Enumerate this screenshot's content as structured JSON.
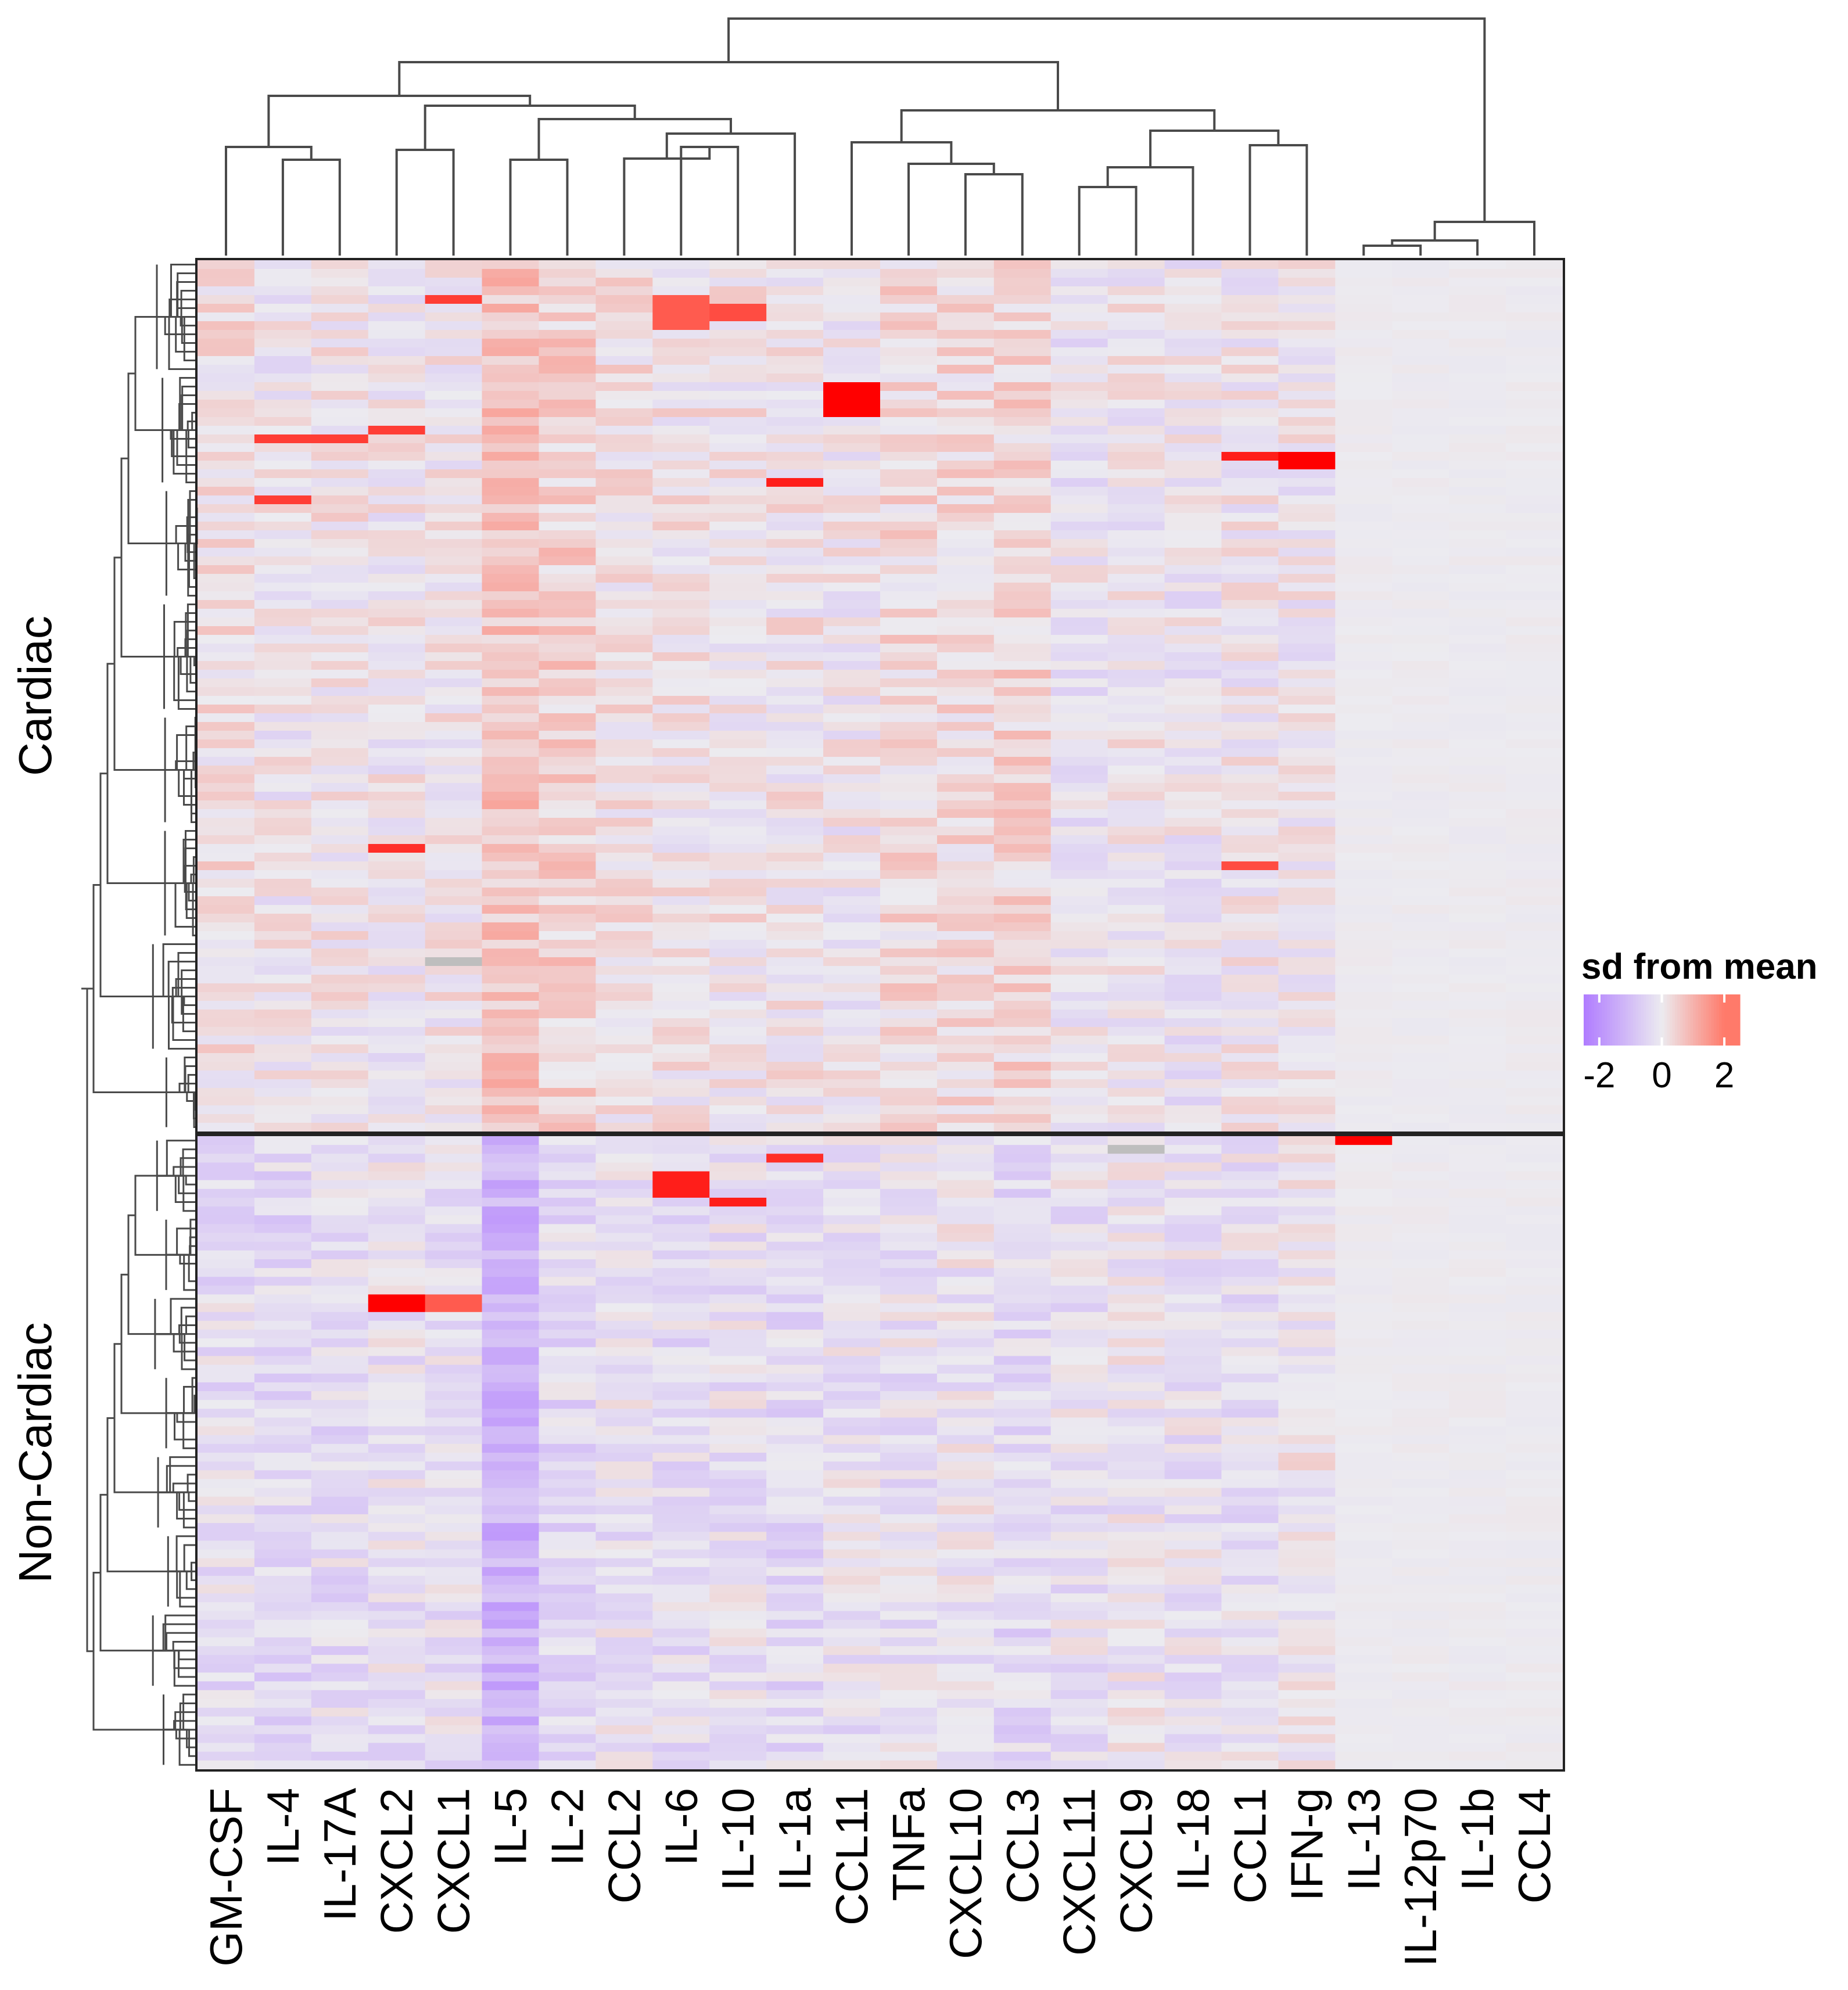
{
  "chart_data": {
    "type": "heatmap",
    "title": "",
    "columns": [
      "GM-CSF",
      "IL-4",
      "IL-17A",
      "CXCL2",
      "CXCL1",
      "IL-5",
      "IL-2",
      "CCL2",
      "IL-6",
      "IL-10",
      "IL-1a",
      "CCL11",
      "TNFa",
      "CXCL10",
      "CCL3",
      "CXCL11",
      "CXCL9",
      "IL-18",
      "CCL1",
      "IFN-g",
      "IL-13",
      "IL-12p70",
      "IL-1b",
      "CCL4"
    ],
    "row_groups": [
      {
        "name": "Cardiac",
        "n_rows": 100
      },
      {
        "name": "Non-Cardiac",
        "n_rows": 72
      }
    ],
    "legend": {
      "title": "sd from mean",
      "ticks": [
        "-2",
        "0",
        "2"
      ],
      "range": [
        -2.5,
        2.5
      ],
      "colors": {
        "low": "#b07cff",
        "mid": "#ecebf0",
        "high": "#ff7a6a",
        "extreme": "#ff0000",
        "missing": "#bebebe"
      }
    },
    "column_means": {
      "Cardiac": [
        0.2,
        0.0,
        0.1,
        0.0,
        0.1,
        0.7,
        0.5,
        0.2,
        0.1,
        0.1,
        0.1,
        0.0,
        0.3,
        0.3,
        0.4,
        -0.1,
        0.0,
        -0.1,
        0.0,
        0.0,
        0.0,
        0.0,
        0.0,
        0.0
      ],
      "Non-Cardiac": [
        -0.3,
        -0.4,
        -0.3,
        -0.2,
        -0.2,
        -1.3,
        -0.4,
        -0.2,
        -0.3,
        -0.2,
        -0.4,
        -0.2,
        -0.2,
        -0.1,
        -0.4,
        -0.2,
        -0.1,
        -0.2,
        -0.2,
        0.0,
        0.0,
        0.0,
        0.0,
        0.0
      ]
    },
    "highlights": [
      {
        "group": "Cardiac",
        "col": "CCL11",
        "rows": [
          14,
          17
        ],
        "value": 3.0
      },
      {
        "group": "Cardiac",
        "col": "IFN-g",
        "rows": [
          22,
          23
        ],
        "value": 2.8
      },
      {
        "group": "Cardiac",
        "col": "CCL1",
        "rows": [
          22,
          22
        ],
        "value": 2.6
      },
      {
        "group": "Cardiac",
        "col": "IL-1a",
        "rows": [
          25,
          25
        ],
        "value": 2.6
      },
      {
        "group": "Cardiac",
        "col": "CXCL2",
        "rows": [
          19,
          19
        ],
        "value": 2.4
      },
      {
        "group": "Cardiac",
        "col": "IL-4",
        "rows": [
          20,
          20
        ],
        "value": 2.4
      },
      {
        "group": "Cardiac",
        "col": "IL-17A",
        "rows": [
          20,
          20
        ],
        "value": 2.4
      },
      {
        "group": "Cardiac",
        "col": "IL-4",
        "rows": [
          27,
          27
        ],
        "value": 2.4
      },
      {
        "group": "Cardiac",
        "col": "CXCL2",
        "rows": [
          67,
          67
        ],
        "value": 2.5
      },
      {
        "group": "Cardiac",
        "col": "CCL1",
        "rows": [
          69,
          69
        ],
        "value": 2.3
      },
      {
        "group": "Cardiac",
        "col": "CXCL1",
        "rows": [
          4,
          4
        ],
        "value": 2.4
      },
      {
        "group": "Cardiac",
        "col": "IL-6",
        "rows": [
          4,
          7
        ],
        "value": 2.2
      },
      {
        "group": "Cardiac",
        "col": "IL-10",
        "rows": [
          5,
          6
        ],
        "value": 2.3
      },
      {
        "group": "Cardiac",
        "col": "CXCL1",
        "rows": [
          80,
          80
        ],
        "value": "NA"
      },
      {
        "group": "Non-Cardiac",
        "col": "IL-6",
        "rows": [
          4,
          6
        ],
        "value": 2.6
      },
      {
        "group": "Non-Cardiac",
        "col": "IL-10",
        "rows": [
          7,
          7
        ],
        "value": 2.6
      },
      {
        "group": "Non-Cardiac",
        "col": "CXCL2",
        "rows": [
          18,
          19
        ],
        "value": 2.8
      },
      {
        "group": "Non-Cardiac",
        "col": "CXCL1",
        "rows": [
          18,
          19
        ],
        "value": 2.2
      },
      {
        "group": "Non-Cardiac",
        "col": "IL-1a",
        "rows": [
          2,
          2
        ],
        "value": 2.5
      },
      {
        "group": "Non-Cardiac",
        "col": "IL-13",
        "rows": [
          0,
          0
        ],
        "value": 3.0
      },
      {
        "group": "Non-Cardiac",
        "col": "CXCL9",
        "rows": [
          1,
          1
        ],
        "value": "NA"
      }
    ]
  }
}
